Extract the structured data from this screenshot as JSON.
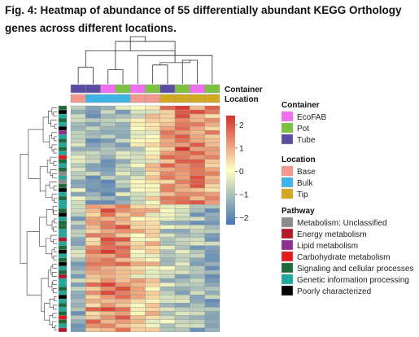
{
  "figure": {
    "title": "Fig. 4: Heatmap of abundance of 55 differentially abundant KEGG Orthology genes across different locations."
  },
  "chart_data": {
    "type": "heatmap",
    "n_rows": 55,
    "colors": {
      "low": "#4575b4",
      "mid": "#ffffbf",
      "high": "#d73027",
      "cell_border": "#999999"
    },
    "colorbar": {
      "ticks": [
        2,
        1,
        0,
        -1,
        -2
      ],
      "range": [
        -2.3,
        2.4
      ]
    },
    "annotations": {
      "container": {
        "label": "Container",
        "legend_title": "Container",
        "levels": [
          {
            "name": "EcoFAB",
            "color": "#f16ef0"
          },
          {
            "name": "Pot",
            "color": "#7dc143"
          },
          {
            "name": "Tube",
            "color": "#5a4ea3"
          }
        ]
      },
      "location": {
        "label": "Location",
        "legend_title": "Location",
        "levels": [
          {
            "name": "Base",
            "color": "#f4978e"
          },
          {
            "name": "Bulk",
            "color": "#3cb4e8"
          },
          {
            "name": "Tip",
            "color": "#d2a81e"
          }
        ]
      },
      "pathway": {
        "legend_title": "Pathway",
        "levels": [
          {
            "name": "Metabolism: Unclassified",
            "color": "#8c8c8c"
          },
          {
            "name": "Energy metabolism",
            "color": "#b2182b"
          },
          {
            "name": "Lipid metabolism",
            "color": "#8e2f8f"
          },
          {
            "name": "Carbohydrate metabolism",
            "color": "#e31a1c"
          },
          {
            "name": "Signaling and cellular processes",
            "color": "#1b6b3a"
          },
          {
            "name": "Genetic information processing",
            "color": "#1fa99c"
          },
          {
            "name": "Poorly characterized",
            "color": "#000000"
          }
        ]
      }
    },
    "columns": [
      {
        "container": "Tube",
        "location": "Base"
      },
      {
        "container": "Tube",
        "location": "Bulk"
      },
      {
        "container": "EcoFAB",
        "location": "Bulk"
      },
      {
        "container": "Pot",
        "location": "Bulk"
      },
      {
        "container": "EcoFAB",
        "location": "Base"
      },
      {
        "container": "Pot",
        "location": "Base"
      },
      {
        "container": "Tube",
        "location": "Tip"
      },
      {
        "container": "Pot",
        "location": "Tip"
      },
      {
        "container": "EcoFAB",
        "location": "Tip"
      },
      {
        "container": "Pot",
        "location": "Tip"
      }
    ],
    "row_pathways": [
      "Signaling and cellular processes",
      "Poorly characterized",
      "Genetic information processing",
      "Signaling and cellular processes",
      "Genetic information processing",
      "Poorly characterized",
      "Lipid metabolism",
      "Genetic information processing",
      "Signaling and cellular processes",
      "Genetic information processing",
      "Signaling and cellular processes",
      "Genetic information processing",
      "Carbohydrate metabolism",
      "Signaling and cellular processes",
      "Genetic information processing",
      "Signaling and cellular processes",
      "Metabolism: Unclassified",
      "Genetic information processing",
      "Metabolism: Unclassified",
      "Signaling and cellular processes",
      "Poorly characterized",
      "Genetic information processing",
      "Signaling and cellular processes",
      "Genetic information processing",
      "Genetic information processing",
      "Signaling and cellular processes",
      "Poorly characterized",
      "Genetic information processing",
      "Signaling and cellular processes",
      "Signaling and cellular processes",
      "Genetic information processing",
      "Genetic information processing",
      "Energy metabolism",
      "Genetic information processing",
      "Signaling and cellular processes",
      "Poorly characterized",
      "Genetic information processing",
      "Signaling and cellular processes",
      "Poorly characterized",
      "Genetic information processing",
      "Signaling and cellular processes",
      "Energy metabolism",
      "Genetic information processing",
      "Genetic information processing",
      "Signaling and cellular processes",
      "Genetic information processing",
      "Poorly characterized",
      "Genetic information processing",
      "Signaling and cellular processes",
      "Genetic information processing",
      "Signaling and cellular processes",
      "Carbohydrate metabolism",
      "Signaling and cellular processes",
      "Genetic information processing",
      "Energy metabolism"
    ],
    "group1_profile": [
      -0.9,
      -1.2,
      -1.3,
      -1.0,
      -0.3,
      0.2,
      1.1,
      1.5,
      1.3,
      1.0
    ],
    "group2_profile": [
      -1.1,
      1.0,
      1.4,
      1.2,
      0.4,
      0.3,
      -0.7,
      -1.0,
      -1.1,
      -1.2
    ],
    "group_split_row": 24,
    "col_dendrogram": [
      [
        0,
        1,
        0.35
      ],
      [
        5,
        6,
        0.4
      ],
      [
        7,
        8,
        0.5
      ],
      [
        4,
        9,
        0.6
      ],
      [
        2,
        3,
        0.3
      ],
      [
        11,
        12,
        0.45
      ],
      [
        10,
        13,
        0.7
      ],
      [
        14,
        15,
        0.9
      ],
      [
        16,
        17,
        1.0
      ]
    ],
    "row_dendrogram_groups": [
      {
        "start": 0,
        "end": 12,
        "height": 0.55
      },
      {
        "start": 12,
        "end": 24,
        "height": 0.6
      },
      {
        "start": 24,
        "end": 38,
        "height": 0.55
      },
      {
        "start": 38,
        "end": 55,
        "height": 0.65
      }
    ]
  }
}
